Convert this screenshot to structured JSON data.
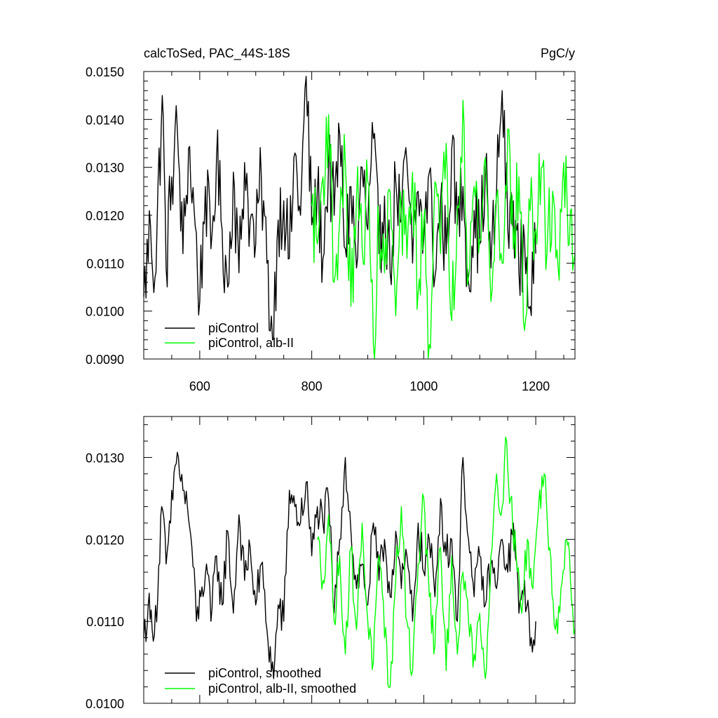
{
  "chart_data": [
    {
      "type": "line",
      "title_left": "calcToSed, PAC_44S-18S",
      "title_right": "PgC/y",
      "xlim": [
        500,
        1270
      ],
      "ylim": [
        0.009,
        0.015
      ],
      "x_major_ticks": [
        600,
        800,
        1000,
        1200
      ],
      "x_tick_labels": [
        "600",
        "800",
        "1000",
        "1200"
      ],
      "y_major_ticks": [
        0.009,
        0.01,
        0.011,
        0.012,
        0.013,
        0.014,
        0.015
      ],
      "y_tick_labels": [
        "0.0090",
        "0.0100",
        "0.0110",
        "0.0120",
        "0.0130",
        "0.0140",
        "0.0150"
      ],
      "legend_position": "bottom-left",
      "series": [
        {
          "name": "piControl",
          "color": "#000000",
          "x_start": 500,
          "x_end": 1200,
          "points": [
            [
              500,
              0.0103
            ],
            [
              512,
              0.0118
            ],
            [
              520,
              0.0107
            ],
            [
              533,
              0.0145
            ],
            [
              540,
              0.0109
            ],
            [
              550,
              0.0128
            ],
            [
              560,
              0.0138
            ],
            [
              570,
              0.0112
            ],
            [
              580,
              0.0134
            ],
            [
              590,
              0.0121
            ],
            [
              600,
              0.0102
            ],
            [
              610,
              0.0126
            ],
            [
              620,
              0.0113
            ],
            [
              630,
              0.0132
            ],
            [
              640,
              0.0117
            ],
            [
              650,
              0.0105
            ],
            [
              660,
              0.0129
            ],
            [
              670,
              0.0108
            ],
            [
              680,
              0.0131
            ],
            [
              690,
              0.0119
            ],
            [
              700,
              0.0114
            ],
            [
              710,
              0.0128
            ],
            [
              720,
              0.011
            ],
            [
              730,
              0.0094
            ],
            [
              740,
              0.0119
            ],
            [
              750,
              0.0123
            ],
            [
              760,
              0.0111
            ],
            [
              770,
              0.0133
            ],
            [
              780,
              0.012
            ],
            [
              790,
              0.0149
            ],
            [
              800,
              0.0118
            ],
            [
              810,
              0.0125
            ],
            [
              820,
              0.0111
            ],
            [
              830,
              0.0131
            ],
            [
              840,
              0.012
            ],
            [
              850,
              0.0137
            ],
            [
              860,
              0.0113
            ],
            [
              870,
              0.0126
            ],
            [
              880,
              0.0109
            ],
            [
              890,
              0.013
            ],
            [
              900,
              0.0117
            ],
            [
              910,
              0.0136
            ],
            [
              920,
              0.0112
            ],
            [
              930,
              0.0124
            ],
            [
              940,
              0.0108
            ],
            [
              950,
              0.0127
            ],
            [
              960,
              0.0119
            ],
            [
              970,
              0.0131
            ],
            [
              980,
              0.011
            ],
            [
              990,
              0.0125
            ],
            [
              1000,
              0.0115
            ],
            [
              1010,
              0.0129
            ],
            [
              1020,
              0.0107
            ],
            [
              1030,
              0.0123
            ],
            [
              1040,
              0.0112
            ],
            [
              1050,
              0.0134
            ],
            [
              1060,
              0.0118
            ],
            [
              1070,
              0.0126
            ],
            [
              1080,
              0.0106
            ],
            [
              1090,
              0.0121
            ],
            [
              1100,
              0.0114
            ],
            [
              1110,
              0.013
            ],
            [
              1120,
              0.0109
            ],
            [
              1130,
              0.0125
            ],
            [
              1140,
              0.0146
            ],
            [
              1150,
              0.0117
            ],
            [
              1160,
              0.0123
            ],
            [
              1170,
              0.0108
            ],
            [
              1180,
              0.0115
            ],
            [
              1190,
              0.0101
            ],
            [
              1200,
              0.0112
            ]
          ]
        },
        {
          "name": "piControl, alb-II",
          "color": "#00ff00",
          "x_start": 800,
          "x_end": 1270,
          "points": [
            [
              800,
              0.0122
            ],
            [
              810,
              0.0114
            ],
            [
              820,
              0.0128
            ],
            [
              830,
              0.0141
            ],
            [
              840,
              0.0106
            ],
            [
              850,
              0.0119
            ],
            [
              860,
              0.0131
            ],
            [
              870,
              0.0101
            ],
            [
              880,
              0.0124
            ],
            [
              890,
              0.0113
            ],
            [
              900,
              0.0127
            ],
            [
              910,
              0.0093
            ],
            [
              920,
              0.0118
            ],
            [
              930,
              0.0108
            ],
            [
              940,
              0.0125
            ],
            [
              950,
              0.0099
            ],
            [
              960,
              0.0121
            ],
            [
              970,
              0.0111
            ],
            [
              980,
              0.0129
            ],
            [
              990,
              0.0104
            ],
            [
              1000,
              0.0119
            ],
            [
              1010,
              0.0093
            ],
            [
              1020,
              0.0127
            ],
            [
              1030,
              0.0112
            ],
            [
              1040,
              0.0135
            ],
            [
              1050,
              0.0098
            ],
            [
              1060,
              0.0122
            ],
            [
              1070,
              0.0144
            ],
            [
              1080,
              0.0107
            ],
            [
              1090,
              0.0126
            ],
            [
              1100,
              0.0115
            ],
            [
              1110,
              0.0132
            ],
            [
              1120,
              0.0102
            ],
            [
              1130,
              0.0124
            ],
            [
              1140,
              0.011
            ],
            [
              1150,
              0.0138
            ],
            [
              1160,
              0.0113
            ],
            [
              1170,
              0.0128
            ],
            [
              1180,
              0.0096
            ],
            [
              1190,
              0.0121
            ],
            [
              1200,
              0.0117
            ],
            [
              1210,
              0.013
            ],
            [
              1220,
              0.0112
            ],
            [
              1230,
              0.0125
            ],
            [
              1240,
              0.0109
            ],
            [
              1250,
              0.0131
            ],
            [
              1260,
              0.0114
            ],
            [
              1270,
              0.0112
            ]
          ]
        }
      ]
    },
    {
      "type": "line",
      "xlim": [
        500,
        1270
      ],
      "ylim": [
        0.01,
        0.0135
      ],
      "x_major_ticks": [
        600,
        800,
        1000,
        1200
      ],
      "y_major_ticks": [
        0.01,
        0.011,
        0.012,
        0.013
      ],
      "y_tick_labels": [
        "0.0100",
        "0.0110",
        "0.0120",
        "0.0130"
      ],
      "legend_position": "bottom-left",
      "series": [
        {
          "name": "piControl, smoothed",
          "color": "#000000",
          "x_start": 500,
          "x_end": 1200,
          "points": [
            [
              500,
              0.0108
            ],
            [
              508,
              0.0112
            ],
            [
              515,
              0.0109
            ],
            [
              525,
              0.0113
            ],
            [
              532,
              0.0124
            ],
            [
              540,
              0.0117
            ],
            [
              548,
              0.0122
            ],
            [
              556,
              0.0129
            ],
            [
              562,
              0.013
            ],
            [
              570,
              0.0126
            ],
            [
              578,
              0.0124
            ],
            [
              586,
              0.0119
            ],
            [
              594,
              0.011
            ],
            [
              602,
              0.0113
            ],
            [
              612,
              0.0117
            ],
            [
              620,
              0.011
            ],
            [
              630,
              0.0118
            ],
            [
              640,
              0.0112
            ],
            [
              650,
              0.0121
            ],
            [
              660,
              0.0111
            ],
            [
              670,
              0.0123
            ],
            [
              680,
              0.0115
            ],
            [
              690,
              0.0119
            ],
            [
              700,
              0.0112
            ],
            [
              710,
              0.0117
            ],
            [
              720,
              0.0109
            ],
            [
              732,
              0.0103
            ],
            [
              740,
              0.0112
            ],
            [
              750,
              0.011
            ],
            [
              760,
              0.0126
            ],
            [
              770,
              0.0124
            ],
            [
              780,
              0.0122
            ],
            [
              790,
              0.0127
            ],
            [
              800,
              0.0118
            ],
            [
              810,
              0.0124
            ],
            [
              820,
              0.0122
            ],
            [
              830,
              0.0125
            ],
            [
              840,
              0.0111
            ],
            [
              850,
              0.012
            ],
            [
              860,
              0.013
            ],
            [
              870,
              0.0121
            ],
            [
              880,
              0.0114
            ],
            [
              890,
              0.0117
            ],
            [
              900,
              0.0112
            ],
            [
              910,
              0.0122
            ],
            [
              920,
              0.0115
            ],
            [
              930,
              0.012
            ],
            [
              940,
              0.0113
            ],
            [
              950,
              0.0121
            ],
            [
              960,
              0.0114
            ],
            [
              970,
              0.0118
            ],
            [
              980,
              0.011
            ],
            [
              990,
              0.0122
            ],
            [
              1000,
              0.0116
            ],
            [
              1010,
              0.012
            ],
            [
              1020,
              0.0113
            ],
            [
              1030,
              0.0125
            ],
            [
              1040,
              0.0118
            ],
            [
              1050,
              0.012
            ],
            [
              1060,
              0.011
            ],
            [
              1070,
              0.013
            ],
            [
              1080,
              0.012
            ],
            [
              1090,
              0.0113
            ],
            [
              1100,
              0.0118
            ],
            [
              1110,
              0.0112
            ],
            [
              1120,
              0.0117
            ],
            [
              1130,
              0.0114
            ],
            [
              1140,
              0.012
            ],
            [
              1150,
              0.0116
            ],
            [
              1160,
              0.0122
            ],
            [
              1170,
              0.0111
            ],
            [
              1180,
              0.0115
            ],
            [
              1190,
              0.0107
            ],
            [
              1200,
              0.011
            ]
          ]
        },
        {
          "name": "piControl, alb-II, smoothed",
          "color": "#00ff00",
          "x_start": 810,
          "x_end": 1270,
          "points": [
            [
              810,
              0.012
            ],
            [
              820,
              0.0115
            ],
            [
              830,
              0.0123
            ],
            [
              840,
              0.011
            ],
            [
              850,
              0.0118
            ],
            [
              860,
              0.0106
            ],
            [
              870,
              0.0119
            ],
            [
              880,
              0.0109
            ],
            [
              890,
              0.0122
            ],
            [
              900,
              0.011
            ],
            [
              910,
              0.0105
            ],
            [
              920,
              0.0118
            ],
            [
              930,
              0.0108
            ],
            [
              940,
              0.0102
            ],
            [
              950,
              0.0115
            ],
            [
              960,
              0.0124
            ],
            [
              970,
              0.011
            ],
            [
              980,
              0.0104
            ],
            [
              990,
              0.0117
            ],
            [
              1000,
              0.0125
            ],
            [
              1010,
              0.0113
            ],
            [
              1020,
              0.0107
            ],
            [
              1030,
              0.0119
            ],
            [
              1040,
              0.0104
            ],
            [
              1050,
              0.0118
            ],
            [
              1060,
              0.0106
            ],
            [
              1070,
              0.0116
            ],
            [
              1080,
              0.011
            ],
            [
              1090,
              0.0106
            ],
            [
              1100,
              0.0111
            ],
            [
              1110,
              0.0103
            ],
            [
              1120,
              0.0118
            ],
            [
              1130,
              0.0128
            ],
            [
              1140,
              0.0124
            ],
            [
              1148,
              0.0132
            ],
            [
              1155,
              0.0125
            ],
            [
              1165,
              0.0118
            ],
            [
              1175,
              0.0111
            ],
            [
              1185,
              0.012
            ],
            [
              1195,
              0.0114
            ],
            [
              1205,
              0.0124
            ],
            [
              1215,
              0.0128
            ],
            [
              1225,
              0.0119
            ],
            [
              1235,
              0.0109
            ],
            [
              1245,
              0.0114
            ],
            [
              1255,
              0.012
            ],
            [
              1262,
              0.0115
            ],
            [
              1270,
              0.0109
            ]
          ]
        }
      ]
    }
  ]
}
